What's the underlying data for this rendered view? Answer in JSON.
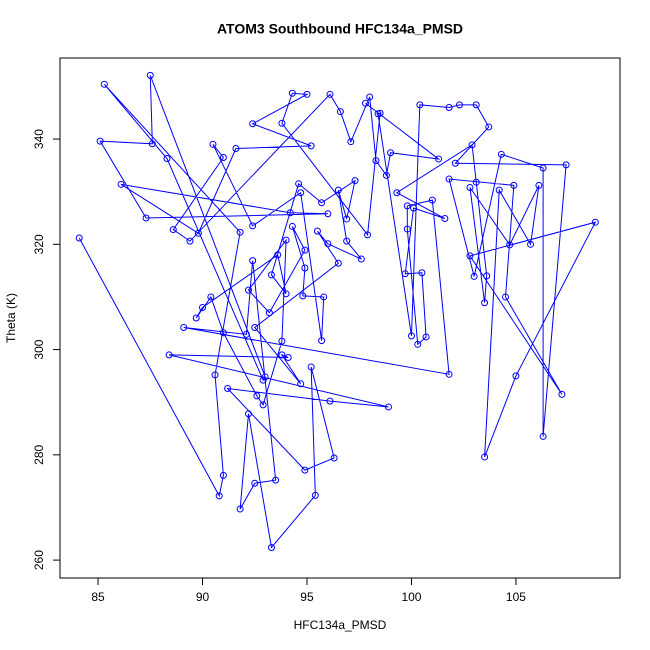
{
  "chart_data": {
    "type": "line",
    "title": "ATOM3 Southbound HFC134a_PMSD",
    "xlabel": "HFC134a_PMSD",
    "ylabel": "Theta (K)",
    "color": "#0000ff",
    "xlim": [
      83.18,
      109.98
    ],
    "ylim": [
      256.6,
      355.4
    ],
    "xticks": [
      85,
      90,
      95,
      100,
      105
    ],
    "yticks": [
      260,
      280,
      300,
      320,
      340
    ],
    "x": [
      84.1,
      90.8,
      91.0,
      90.6,
      91.8,
      85.3,
      88.3,
      92.9,
      93.0,
      87.5,
      87.6,
      85.1,
      87.3,
      96.0,
      94.2,
      86.1,
      89.8,
      91.6,
      95.2,
      92.4,
      95.0,
      94.3,
      93.8,
      97.9,
      98.5,
      98.4,
      100.0,
      100.4,
      101.8,
      102.3,
      103.1,
      103.7,
      102.1,
      107.4,
      106.3,
      106.3,
      104.3,
      103.0,
      101.8,
      104.9,
      104.5,
      107.2,
      102.8,
      108.8,
      105.0,
      103.5,
      104.2,
      105.7,
      106.1,
      104.7,
      102.8,
      103.5,
      103.6,
      103.1,
      102.9,
      99.3,
      101.6,
      100.1,
      99.7,
      100.5,
      100.7,
      100.3,
      99.8,
      99.8,
      101.0,
      101.8,
      89.1,
      92.1,
      92.4,
      93.5,
      92.5,
      91.8,
      92.2,
      93.3,
      95.4,
      95.2,
      96.3,
      94.9,
      91.2,
      96.1,
      98.9,
      88.4,
      94.1,
      93.8,
      94.7,
      92.5,
      96.5,
      95.5,
      96.0,
      97.6,
      96.9,
      96.5,
      96.9,
      97.3,
      95.7,
      94.6,
      93.3,
      94.0,
      93.6,
      90.0,
      89.7,
      90.4,
      91.0,
      92.6,
      92.9,
      93.8,
      94.0,
      92.2,
      93.2,
      94.9,
      94.3,
      94.9,
      94.8,
      95.8,
      95.7,
      94.7,
      92.4,
      90.5,
      91.0,
      88.6,
      89.4,
      96.1,
      96.6,
      97.1,
      98.0,
      98.3,
      98.8,
      99.0,
      101.3,
      97.8
    ],
    "values": [
      321.2,
      272.2,
      276.1,
      295.2,
      322.3,
      350.4,
      336.3,
      294.2,
      294.8,
      352.1,
      339.1,
      339.6,
      325.0,
      325.8,
      326.0,
      331.4,
      322.1,
      338.2,
      338.7,
      342.9,
      348.5,
      348.7,
      343.0,
      321.8,
      344.9,
      344.8,
      302.6,
      346.5,
      346.0,
      346.5,
      346.5,
      342.3,
      335.4,
      335.1,
      283.5,
      334.5,
      337.1,
      313.9,
      332.4,
      331.2,
      310.0,
      291.5,
      317.8,
      324.2,
      295.0,
      279.6,
      330.3,
      320.0,
      331.2,
      319.9,
      330.8,
      308.9,
      314.0,
      331.8,
      338.9,
      329.8,
      324.9,
      326.9,
      314.4,
      314.6,
      302.4,
      301.0,
      322.9,
      327.3,
      328.4,
      295.3,
      304.2,
      302.9,
      316.9,
      275.2,
      274.6,
      269.7,
      287.8,
      262.4,
      272.3,
      296.7,
      279.4,
      277.1,
      292.6,
      290.2,
      289.1,
      299.0,
      298.5,
      299.0,
      293.5,
      304.2,
      316.4,
      322.5,
      320.1,
      317.2,
      320.6,
      330.3,
      324.8,
      332.1,
      327.9,
      331.5,
      314.2,
      310.6,
      318.0,
      308.0,
      306.0,
      310.0,
      303.2,
      291.2,
      289.5,
      301.6,
      320.8,
      311.3,
      307.0,
      318.9,
      323.4,
      315.5,
      310.2,
      310.0,
      301.7,
      329.8,
      323.5,
      339.0,
      336.5,
      322.8,
      320.6,
      348.5,
      345.2,
      339.5,
      348.0,
      335.9,
      333.1,
      337.4,
      336.2,
      346.8
    ]
  }
}
